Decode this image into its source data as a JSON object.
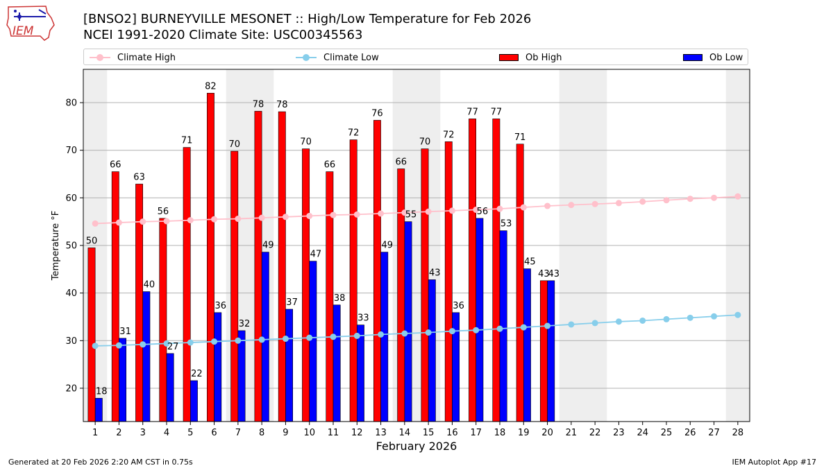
{
  "header": {
    "title_line1": "[BNSO2] BURNEYVILLE MESONET :: High/Low Temperature for Feb 2026",
    "title_line2": "NCEI 1991-2020 Climate Site: USC00345563"
  },
  "logo": {
    "text": "IEM"
  },
  "footer": {
    "generated": "Generated at 20 Feb 2026 2:20 AM CST in 0.75s",
    "app": "IEM Autoplot App #17"
  },
  "colors": {
    "ob_high": "#ff0000",
    "ob_low": "#0000ff",
    "climate_high": "#ffc0cb",
    "climate_low": "#87ceeb",
    "weekend_band": "#eeeeee",
    "grid": "#b0b0b0"
  },
  "chart_data": {
    "type": "bar",
    "xlabel": "February 2026",
    "ylabel": "Temperature °F",
    "xlim": [
      0.5,
      28.5
    ],
    "ylim": [
      13,
      87
    ],
    "yticks": [
      20,
      30,
      40,
      50,
      60,
      70,
      80
    ],
    "grid": true,
    "legend_position": "top",
    "legend": [
      "Climate High",
      "Climate Low",
      "Ob High",
      "Ob Low"
    ],
    "days": [
      1,
      2,
      3,
      4,
      5,
      6,
      7,
      8,
      9,
      10,
      11,
      12,
      13,
      14,
      15,
      16,
      17,
      18,
      19,
      20,
      21,
      22,
      23,
      24,
      25,
      26,
      27,
      28
    ],
    "weekend_days": [
      1,
      7,
      8,
      14,
      15,
      21,
      22,
      28
    ],
    "series": [
      {
        "name": "Ob High",
        "kind": "bar",
        "values": [
          49.5,
          65.5,
          62.9,
          55.7,
          70.6,
          82.0,
          69.8,
          78.2,
          78.1,
          70.3,
          65.5,
          72.2,
          76.3,
          66.1,
          70.3,
          71.8,
          76.6,
          76.6,
          71.3,
          42.6
        ],
        "labels": [
          "50",
          "66",
          "63",
          "56",
          "71",
          "82",
          "70",
          "78",
          "78",
          "70",
          "66",
          "72",
          "76",
          "66",
          "70",
          "72",
          "77",
          "77",
          "71",
          "43"
        ]
      },
      {
        "name": "Ob Low",
        "kind": "bar",
        "values": [
          17.9,
          30.5,
          40.3,
          27.3,
          21.6,
          35.9,
          32.1,
          48.6,
          36.6,
          46.7,
          37.5,
          33.3,
          48.6,
          55.0,
          42.8,
          35.9,
          55.7,
          53.1,
          45.1,
          42.6
        ],
        "labels": [
          "18",
          "31",
          "40",
          "27",
          "22",
          "36",
          "32",
          "49",
          "37",
          "47",
          "38",
          "33",
          "49",
          "55",
          "43",
          "36",
          "56",
          "53",
          "45",
          "43"
        ]
      },
      {
        "name": "Climate High",
        "kind": "line",
        "values": [
          54.6,
          54.8,
          55.0,
          55.1,
          55.3,
          55.5,
          55.6,
          55.8,
          56.0,
          56.2,
          56.4,
          56.5,
          56.7,
          56.9,
          57.1,
          57.3,
          57.5,
          57.7,
          58.0,
          58.3,
          58.5,
          58.7,
          58.9,
          59.2,
          59.5,
          59.8,
          60.0,
          60.3
        ]
      },
      {
        "name": "Climate Low",
        "kind": "line",
        "values": [
          28.9,
          29.0,
          29.2,
          29.4,
          29.6,
          29.8,
          30.0,
          30.2,
          30.4,
          30.6,
          30.8,
          31.0,
          31.3,
          31.5,
          31.7,
          32.0,
          32.2,
          32.5,
          32.8,
          33.1,
          33.4,
          33.7,
          34.0,
          34.2,
          34.5,
          34.8,
          35.1,
          35.4
        ]
      }
    ]
  }
}
